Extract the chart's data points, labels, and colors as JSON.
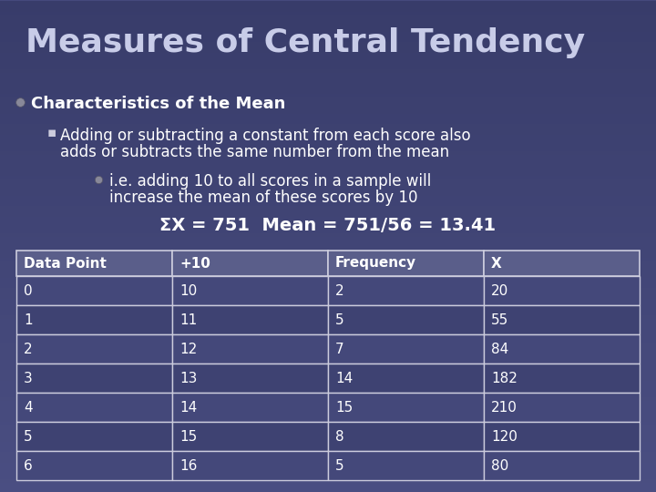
{
  "title": "Measures of Central Tendency",
  "bullet1": "Characteristics of the Mean",
  "bullet2_line1": "Adding or subtracting a constant from each score also",
  "bullet2_line2": "adds or subtracts the same number from the mean",
  "bullet3_line1": "i.e. adding 10 to all scores in a sample will",
  "bullet3_line2": "increase the mean of these scores by 10",
  "bullet4": "ΣX = 751  Mean = 751/56 = 13.41",
  "table_headers": [
    "Data Point",
    "+10",
    "Frequency",
    "X"
  ],
  "table_data": [
    [
      "0",
      "10",
      "2",
      "20"
    ],
    [
      "1",
      "11",
      "5",
      "55"
    ],
    [
      "2",
      "12",
      "7",
      "84"
    ],
    [
      "3",
      "13",
      "14",
      "182"
    ],
    [
      "4",
      "14",
      "15",
      "210"
    ],
    [
      "5",
      "15",
      "8",
      "120"
    ],
    [
      "6",
      "16",
      "5",
      "80"
    ]
  ],
  "bg_color": "#4a4e82",
  "title_color": "#c8cce8",
  "text_color": "#ffffff",
  "table_border_color": "#ccccdd",
  "header_bg": "#5a5e8a",
  "row_bg_even": "#44487a",
  "row_bg_odd": "#3e4272",
  "bullet_ball_color": "#777788",
  "bullet_sq_color": "#ccccdd"
}
